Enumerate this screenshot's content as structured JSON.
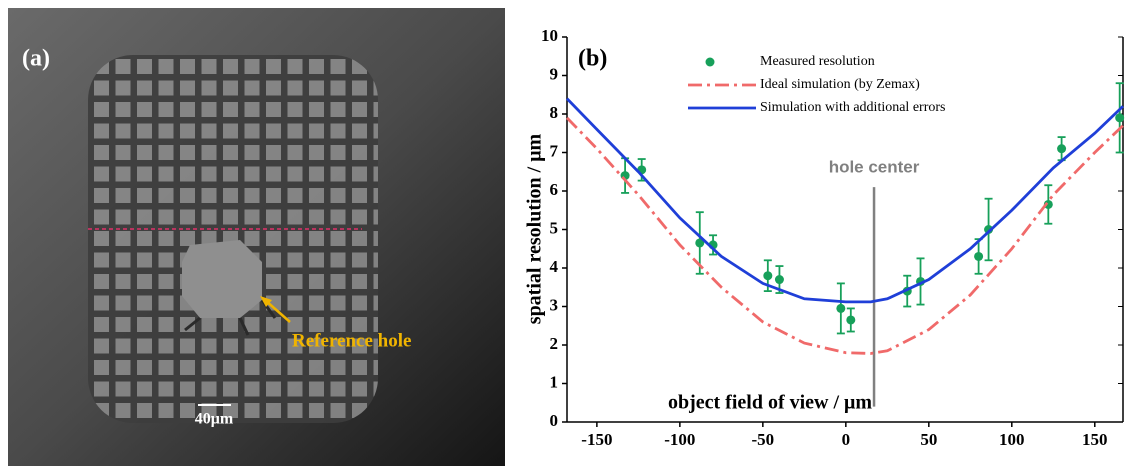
{
  "image_panel": {
    "label": "(a)",
    "annotation": "Reference hole",
    "scale_bar": "40μm"
  },
  "chart_data": {
    "type": "scatter",
    "label": "(b)",
    "x_label": "object field of view / μm",
    "y_label": "spatial resolution / μm",
    "xlim": [
      -168,
      167
    ],
    "xticks": [
      -150,
      -100,
      -50,
      0,
      50,
      100,
      150
    ],
    "ylim": [
      0,
      10
    ],
    "yticks": [
      0,
      1,
      2,
      3,
      4,
      5,
      6,
      7,
      8,
      9,
      10
    ],
    "legend": "top",
    "annotations": [
      {
        "text": "hole center",
        "x": 17
      }
    ],
    "series": [
      {
        "name": "Measured resolution",
        "type": "scatter",
        "color": "#17a05a",
        "x": [
          -133,
          -123,
          -88,
          -80,
          -47,
          -40,
          -3,
          3,
          37,
          45,
          80,
          86,
          122,
          130,
          165
        ],
        "values": [
          6.4,
          6.55,
          4.65,
          4.6,
          3.8,
          3.7,
          2.95,
          2.65,
          3.4,
          3.65,
          4.3,
          5.0,
          5.65,
          7.1,
          7.9
        ],
        "errors": [
          0.45,
          0.28,
          0.8,
          0.25,
          0.4,
          0.35,
          0.65,
          0.3,
          0.4,
          0.6,
          0.45,
          0.8,
          0.5,
          0.3,
          0.9
        ]
      },
      {
        "name": "Ideal simulation (by Zemax)",
        "type": "line",
        "dash": "dash-dot",
        "color": "#f06a6a",
        "x": [
          -168,
          -150,
          -125,
          -100,
          -75,
          -50,
          -25,
          0,
          15,
          25,
          50,
          75,
          100,
          125,
          150,
          167
        ],
        "values": [
          7.9,
          7.1,
          5.9,
          4.6,
          3.5,
          2.6,
          2.05,
          1.8,
          1.78,
          1.85,
          2.4,
          3.3,
          4.5,
          5.9,
          7.0,
          7.7
        ]
      },
      {
        "name": "Simulation with additional errors",
        "type": "line",
        "dash": "solid",
        "color": "#1f3fd8",
        "x": [
          -168,
          -150,
          -125,
          -100,
          -75,
          -50,
          -25,
          0,
          15,
          25,
          50,
          75,
          100,
          125,
          150,
          167
        ],
        "values": [
          8.4,
          7.6,
          6.5,
          5.3,
          4.3,
          3.6,
          3.2,
          3.12,
          3.12,
          3.2,
          3.7,
          4.5,
          5.5,
          6.6,
          7.5,
          8.2
        ]
      }
    ]
  }
}
